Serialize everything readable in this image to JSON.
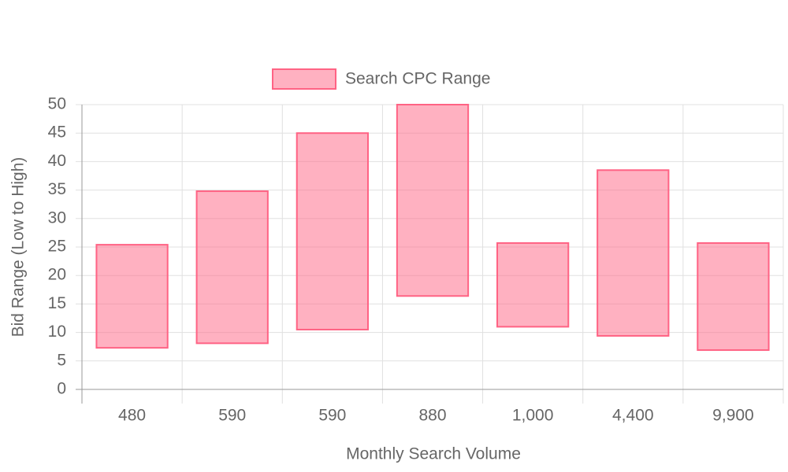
{
  "chart_data": {
    "type": "floating-bar",
    "xlabel": "Monthly Search Volume",
    "ylabel": "Bid Range (Low to High)",
    "categories": [
      "480",
      "590",
      "590",
      "880",
      "1,000",
      "4,400",
      "9,900"
    ],
    "series": [
      {
        "name": "Search CPC Range",
        "color": "#ff6384",
        "values": [
          [
            7.3,
            25.4
          ],
          [
            8.1,
            34.8
          ],
          [
            10.5,
            45.0
          ],
          [
            16.4,
            50
          ],
          [
            11.0,
            25.7
          ],
          [
            9.4,
            38.5
          ],
          [
            6.9,
            25.7
          ]
        ]
      }
    ],
    "ylim": [
      0,
      50
    ],
    "yticks": [
      0,
      5,
      10,
      15,
      20,
      25,
      30,
      35,
      40,
      45,
      50
    ],
    "grid": true,
    "legend": "top"
  }
}
